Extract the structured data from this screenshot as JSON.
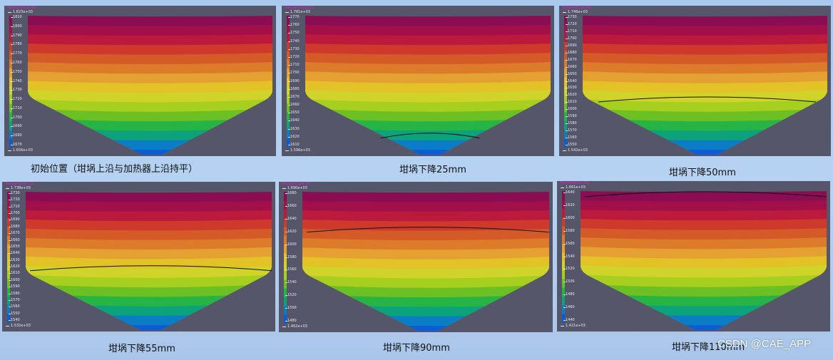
{
  "colors": {
    "background": "#b7d3f2",
    "panel_background": "#55566a",
    "legend_text": "#e8e8f0",
    "legend_title": "#e01bd1",
    "isotherm_line": "#111111",
    "contour_bands": [
      "#8a0c52",
      "#a2104a",
      "#bb1a3c",
      "#cd3a2c",
      "#d45a28",
      "#dc7c2a",
      "#e4a030",
      "#e3c227",
      "#cfd32a",
      "#a6cf20",
      "#6cc023",
      "#26b446",
      "#0ba27c",
      "#0b7dc6",
      "#0c5cd8"
    ]
  },
  "panels": [
    {
      "name": "initial",
      "caption": "初始位置（坩埚上沿与加热器上沿持平）",
      "legend_title": "Temperature (K)",
      "legend_max": "1.823e+03",
      "legend_min": "1.656e+03",
      "ticks": [
        "1810",
        "1800",
        "1790",
        "1780",
        "1770",
        "1760",
        "1750",
        "1740",
        "1730",
        "1720",
        "1710",
        "1700",
        "1690",
        "1680",
        "1670"
      ],
      "isotherm_level": null
    },
    {
      "name": "drop-25mm",
      "caption": "坩埚下降25mm",
      "legend_title": "Temperature (K)",
      "legend_max": "1.781e+03",
      "legend_min": "1.596e+03",
      "ticks": [
        "1770",
        "1760",
        "1750",
        "1740",
        "1730",
        "1720",
        "1710",
        "1700",
        "1690",
        "1680",
        "1670",
        "1660",
        "1650",
        "1640",
        "1630",
        "1620",
        "1610"
      ],
      "isotherm_level": 0.86
    },
    {
      "name": "drop-50mm",
      "caption": "坩埚下降50mm",
      "legend_title": "Temperature (K)",
      "legend_max": "1.746e+03",
      "legend_min": "1.542e+03",
      "ticks": [
        "1730",
        "1720",
        "1710",
        "1700",
        "1690",
        "1680",
        "1670",
        "1660",
        "1650",
        "1640",
        "1630",
        "1620",
        "1610",
        "1600",
        "1590",
        "1580",
        "1570",
        "1560",
        "1550"
      ],
      "isotherm_level": 0.6
    },
    {
      "name": "drop-55mm",
      "caption": "坩埚下降55mm",
      "legend_title": "Temperature (K)",
      "legend_max": "1.738e+03",
      "legend_min": "1.532e+03",
      "ticks": [
        "1730",
        "1720",
        "1710",
        "1700",
        "1690",
        "1680",
        "1670",
        "1660",
        "1650",
        "1640",
        "1630",
        "1620",
        "1610",
        "1600",
        "1590",
        "1580",
        "1570",
        "1560",
        "1550",
        "1540"
      ],
      "isotherm_level": 0.55
    },
    {
      "name": "drop-90mm",
      "caption": "坩埚下降90mm",
      "legend_title": "Temperature (K)",
      "legend_max": "1.690e+03",
      "legend_min": "1.462e+03",
      "ticks": [
        "1680",
        "1660",
        "1640",
        "1620",
        "1600",
        "1580",
        "1560",
        "1540",
        "1520",
        "1500",
        "1480"
      ],
      "isotherm_level": 0.27
    },
    {
      "name": "drop-110mm",
      "caption": "坩埚下降110mm",
      "legend_title": "Temperature (K)",
      "legend_max": "1.661e+03",
      "legend_min": "1.421e+03",
      "ticks": [
        "1640",
        "1620",
        "1600",
        "1580",
        "1560",
        "1540",
        "1520",
        "1500",
        "1480",
        "1460",
        "1440"
      ],
      "isotherm_level": 0.02
    }
  ],
  "watermark": "CSDN @CAE_APP"
}
